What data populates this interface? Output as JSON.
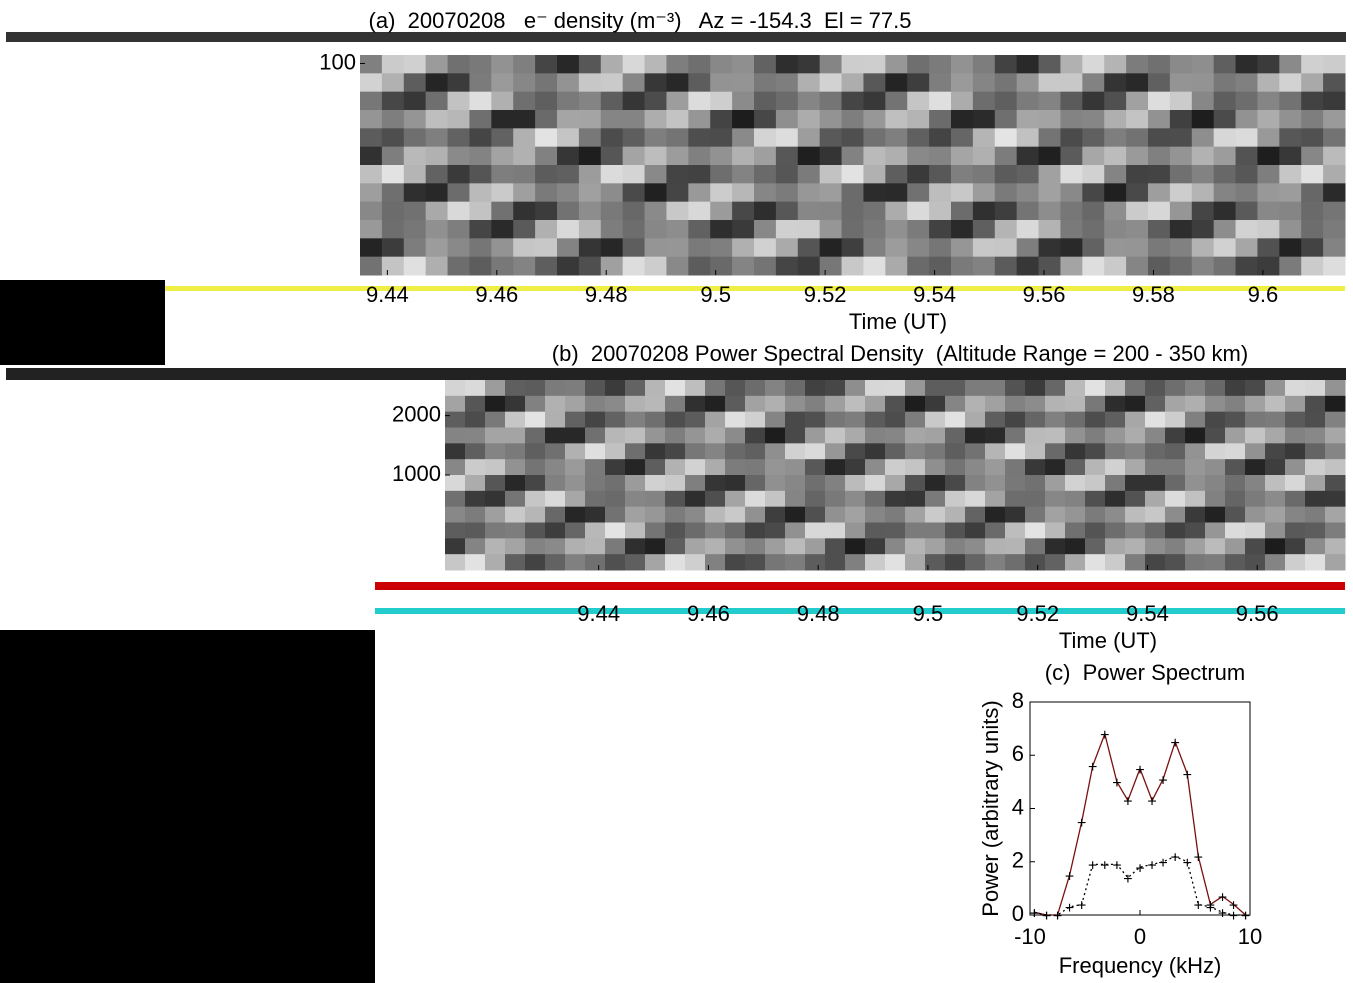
{
  "chart_data": [
    {
      "type": "heatmap",
      "title": "(a)  20070208   e⁻ density (m⁻³)   Az = -154.3  El = 77.5",
      "x_label": "Time (UT)",
      "xlim": [
        9.435,
        9.615
      ],
      "xticks": [
        9.44,
        9.46,
        9.48,
        9.5,
        9.52,
        9.54,
        9.56,
        9.58,
        9.6
      ],
      "ylim": [
        600,
        80
      ],
      "yticks": [
        100
      ]
    },
    {
      "type": "heatmap",
      "title": "(b)  20070208 Power Spectral Density  (Altitude Range = 200 - 350 km)",
      "x_label": "Time (UT)",
      "xlim": [
        9.412,
        9.576
      ],
      "xticks": [
        9.44,
        9.46,
        9.48,
        9.5,
        9.52,
        9.54,
        9.56
      ],
      "ylim": [
        -600,
        2600
      ],
      "yticks": [
        1000,
        2000
      ]
    },
    {
      "type": "line",
      "title": "(c)  Power Spectrum",
      "x_label": "Frequency (kHz)",
      "y_label": "Power (arbitrary units)",
      "xlim": [
        -10,
        10
      ],
      "xticks": [
        -10,
        0,
        10
      ],
      "ylim": [
        0,
        8
      ],
      "yticks": [
        0,
        2,
        4,
        6,
        8
      ],
      "x": [
        -9.6,
        -8.5,
        -7.5,
        -6.4,
        -5.3,
        -4.3,
        -3.2,
        -2.1,
        -1.1,
        0,
        1.1,
        2.1,
        3.2,
        4.3,
        5.3,
        6.4,
        7.5,
        8.5,
        9.6
      ],
      "series": [
        {
          "color": "#7a1010",
          "dash": false,
          "values": [
            0.1,
            0.0,
            0.0,
            1.5,
            3.5,
            5.6,
            6.8,
            5.0,
            4.3,
            5.5,
            4.3,
            5.1,
            6.5,
            5.3,
            2.2,
            0.4,
            0.7,
            0.4,
            0.0
          ]
        },
        {
          "color": "#000000",
          "dash": true,
          "values": [
            0.1,
            0.0,
            0.0,
            0.3,
            0.4,
            1.9,
            1.9,
            1.9,
            1.4,
            1.8,
            1.9,
            2.0,
            2.2,
            2.0,
            0.4,
            0.3,
            0.1,
            0.0,
            0.0
          ]
        }
      ]
    }
  ]
}
